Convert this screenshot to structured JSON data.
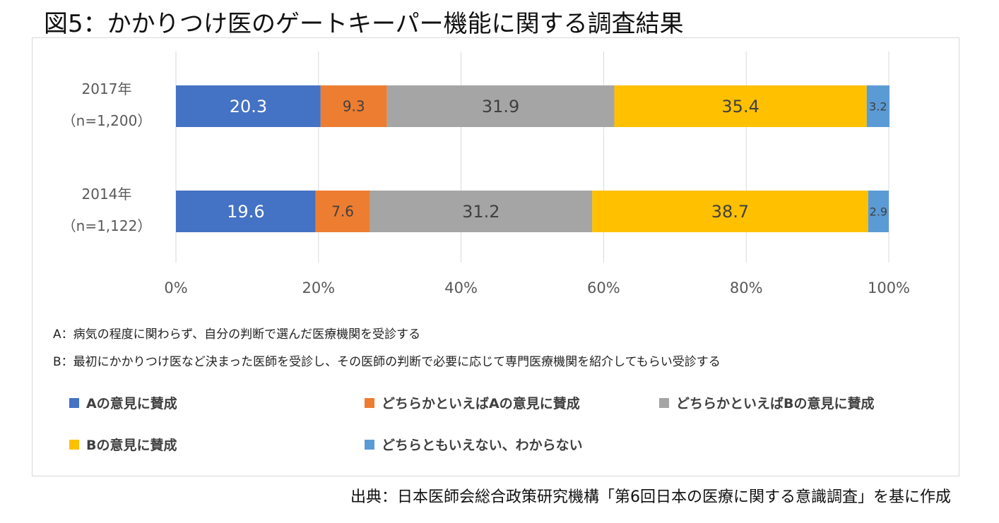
{
  "page_title": "図5：かかりつけ医のゲートキーパー機能に関する調査結果",
  "chart_data": {
    "type": "bar",
    "orientation": "horizontal",
    "stacked": true,
    "percent_stacked": true,
    "categories": [
      {
        "year": "2017年",
        "n": "（n=1,200）"
      },
      {
        "year": "2014年",
        "n": "（n=1,122）"
      }
    ],
    "series": [
      {
        "name": "Aの意見に賛成",
        "color": "#4472c4",
        "label_color": "#ffffff",
        "values": [
          20.3,
          19.6
        ]
      },
      {
        "name": "どちらかといえばAの意見に賛成",
        "color": "#ed7d31",
        "label_color": "#404040",
        "values": [
          9.3,
          7.6
        ]
      },
      {
        "name": "どちらかといえばBの意見に賛成",
        "color": "#a5a5a5",
        "label_color": "#404040",
        "values": [
          31.9,
          31.2
        ]
      },
      {
        "name": "Bの意見に賛成",
        "color": "#ffc000",
        "label_color": "#404040",
        "values": [
          35.4,
          38.7
        ]
      },
      {
        "name": "どちらともいえない、わからない",
        "color": "#5b9bd5",
        "label_color": "#404040",
        "values": [
          3.2,
          2.9
        ]
      }
    ],
    "xlim": [
      0,
      100
    ],
    "x_ticks": [
      "0%",
      "20%",
      "40%",
      "60%",
      "80%",
      "100%"
    ],
    "grid": true,
    "legend_position": "bottom"
  },
  "notes": {
    "a": "A：病気の程度に関わらず、自分の判断で選んだ医療機関を受診する",
    "b": "B：最初にかかりつけ医など決まった医師を受診し、その医師の判断で必要に応じて専門医療機関を紹介してもらい受診する"
  },
  "source": "出典：日本医師会総合政策研究機構「第6回日本の医療に関する意識調査」を基に作成"
}
